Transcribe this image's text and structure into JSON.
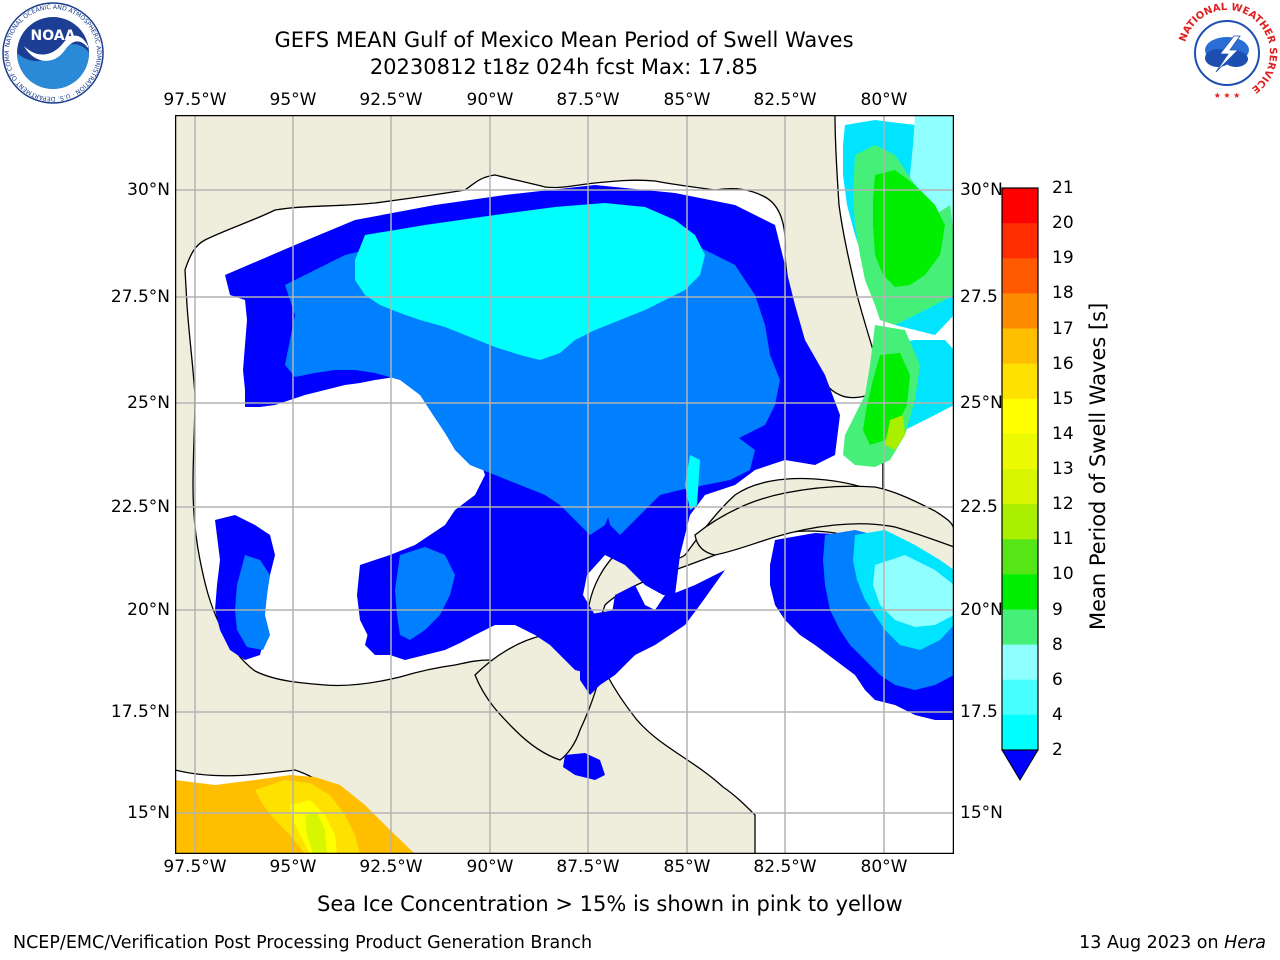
{
  "header": {
    "title_line1": "GEFS MEAN Gulf of Mexico Mean Period of Swell Waves",
    "title_line2": "20230812 t18z 024h fcst   Max: 17.85"
  },
  "logos": {
    "noara_text": "NOAA",
    "noaa_ring_text": "NATIONAL OCEANIC AND ATMOSPHERIC ADMINISTRATION · U.S. DEPARTMENT OF COMMERCE",
    "nws_ring_text": "NATIONAL WEATHER SERVICE"
  },
  "map": {
    "lon_ticks": [
      "97.5°W",
      "95°W",
      "92.5°W",
      "90°W",
      "87.5°W",
      "85°W",
      "82.5°W",
      "80°W"
    ],
    "lat_ticks_left": [
      "30°N",
      "27.5°N",
      "25°N",
      "22.5°N",
      "20°N",
      "17.5°N",
      "15°N"
    ],
    "lat_ticks_right": [
      "30°N",
      "27.5",
      "25°N",
      "22.5",
      "20°N",
      "17.5",
      "15°N"
    ],
    "land_color": "#efeedc",
    "grid_color": "#b3b3b3"
  },
  "colorbar": {
    "title": "Mean Period of Swell Waves [s]",
    "levels": [
      "2",
      "4",
      "6",
      "8",
      "9",
      "10",
      "11",
      "12",
      "13",
      "14",
      "15",
      "16",
      "17",
      "18",
      "19",
      "20",
      "21"
    ],
    "colors": [
      "#0077ff",
      "#00e4ff",
      "#00ffff",
      "#48ffff",
      "#90ffff",
      "#46f078",
      "#00ee00",
      "#56e617",
      "#aaee00",
      "#d7f600",
      "#ebfa00",
      "#ffff00",
      "#ffe100",
      "#ffbe00",
      "#ff8c00",
      "#ff5a00",
      "#ff2d00",
      "#ff0000"
    ],
    "under_color": "#0000ff"
  },
  "footer": {
    "sea_ice_note": "Sea Ice Concentration > 15% is shown in pink to yellow",
    "branch": "NCEP/EMC/Verification Post Processing Product Generation Branch",
    "date": "13 Aug 2023 on ",
    "machine": "Hera"
  }
}
